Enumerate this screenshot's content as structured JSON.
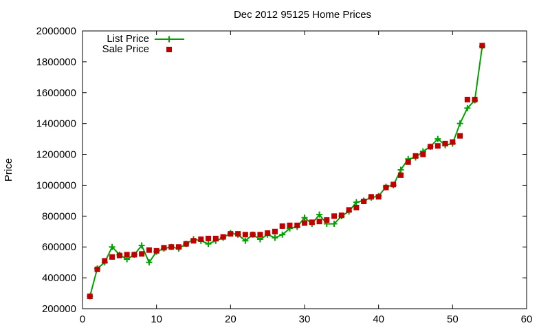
{
  "chart_data": {
    "type": "line",
    "title": "Dec 2012 95125 Home Prices",
    "xlabel": "",
    "ylabel": "Price",
    "xlim": [
      0,
      60
    ],
    "ylim": [
      200000,
      2000000
    ],
    "x_ticks": [
      "0",
      "10",
      "20",
      "30",
      "40",
      "50",
      "60"
    ],
    "y_ticks": [
      "200000",
      "400000",
      "600000",
      "800000",
      "1000000",
      "1200000",
      "1400000",
      "1600000",
      "1800000",
      "2000000"
    ],
    "x_tick_values": [
      0,
      10,
      20,
      30,
      40,
      50,
      60
    ],
    "y_tick_values": [
      200000,
      400000,
      600000,
      800000,
      1000000,
      1200000,
      1400000,
      1600000,
      1800000,
      2000000
    ],
    "grid": false,
    "legend_position": "top-left",
    "x": [
      1,
      2,
      3,
      4,
      5,
      6,
      7,
      8,
      9,
      10,
      11,
      12,
      13,
      14,
      15,
      16,
      17,
      18,
      19,
      20,
      21,
      22,
      23,
      24,
      25,
      26,
      27,
      28,
      29,
      30,
      31,
      32,
      33,
      34,
      35,
      36,
      37,
      38,
      39,
      40,
      41,
      42,
      43,
      44,
      45,
      46,
      47,
      48,
      49,
      50,
      51,
      52,
      53,
      54
    ],
    "series": [
      {
        "name": "List Price",
        "style": "lines+points",
        "marker": "plus",
        "color": "#00a000",
        "values": [
          280000,
          460000,
          500000,
          600000,
          550000,
          520000,
          550000,
          610000,
          500000,
          570000,
          590000,
          600000,
          590000,
          620000,
          650000,
          640000,
          620000,
          640000,
          660000,
          690000,
          680000,
          640000,
          680000,
          650000,
          680000,
          660000,
          680000,
          720000,
          730000,
          790000,
          750000,
          810000,
          750000,
          750000,
          800000,
          830000,
          890000,
          900000,
          920000,
          930000,
          990000,
          1000000,
          1100000,
          1170000,
          1180000,
          1220000,
          1250000,
          1300000,
          1260000,
          1270000,
          1400000,
          1500000,
          1550000,
          1900000
        ]
      },
      {
        "name": "Sale Price",
        "style": "points",
        "marker": "square",
        "color": "#c00000",
        "values": [
          280000,
          455000,
          510000,
          535000,
          545000,
          550000,
          550000,
          555000,
          580000,
          575000,
          595000,
          600000,
          600000,
          620000,
          640000,
          650000,
          655000,
          655000,
          665000,
          685000,
          685000,
          680000,
          680000,
          680000,
          690000,
          700000,
          735000,
          740000,
          740000,
          755000,
          760000,
          765000,
          775000,
          800000,
          805000,
          840000,
          855000,
          895000,
          925000,
          925000,
          985000,
          1005000,
          1065000,
          1150000,
          1190000,
          1200000,
          1250000,
          1255000,
          1270000,
          1280000,
          1320000,
          1555000,
          1555000,
          1905000
        ]
      }
    ]
  }
}
